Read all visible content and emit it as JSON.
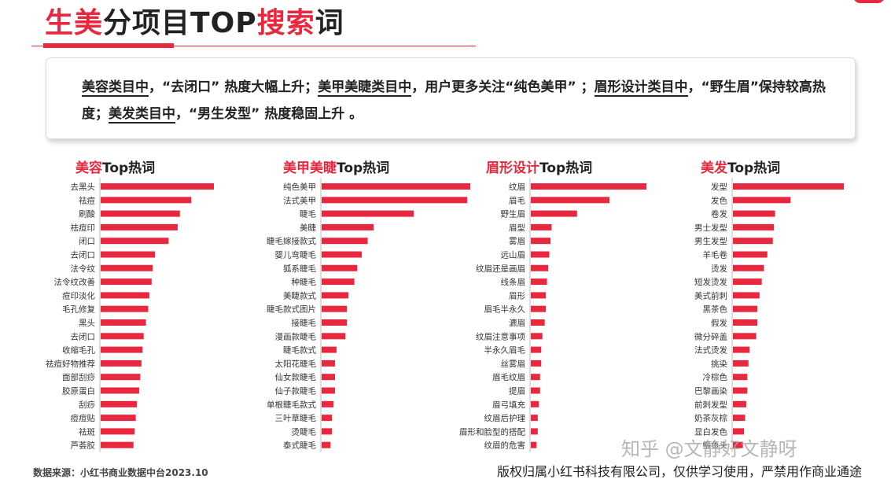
{
  "header": {
    "title_part1": "生美",
    "title_part2": "分项目",
    "title_part3": "TOP",
    "title_part4": "搜索",
    "title_part5": "词"
  },
  "summary": {
    "s1_cat": "美容类目中",
    "s1_text": "，“去闭口” 热度大幅上升；",
    "s2_cat": "美甲美睫类目中",
    "s2_text": "，用户更多关注“纯色美甲” ；",
    "s3_cat": "眉形设计类目中",
    "s3_text": "，“野生眉”保持较高热度；",
    "s4_cat": "美发类目中",
    "s4_text": "，“男生发型” 热度稳固上升 。"
  },
  "footer": {
    "source": "数据来源：小红书商业数据中台2023.10",
    "copyright": "版权归属小红书科技有限公司，仅供学习使用，严禁用作商业通途"
  },
  "watermark": {
    "text": "知乎 @文静好文静呀"
  },
  "colors": {
    "accent": "#e8283f"
  },
  "chart_data": [
    {
      "type": "bar",
      "orientation": "horizontal",
      "title_red": "美容",
      "title_black": "Top热词",
      "categories": [
        "去黑头",
        "祛痘",
        "刷酸",
        "祛痘印",
        "闭口",
        "去闭口",
        "法令纹",
        "法令纹改善",
        "痘印淡化",
        "毛孔修复",
        "黑头",
        "去闭口",
        "收缩毛孔",
        "祛痘好物推荐",
        "面部刮痧",
        "胶原蛋白",
        "刮痧",
        "痘痘贴",
        "祛斑",
        "芦荟胶"
      ],
      "values": [
        100,
        80,
        70,
        68,
        60,
        48,
        46,
        45,
        43,
        42,
        40,
        38,
        37,
        36,
        35,
        34,
        32,
        31,
        30,
        29
      ],
      "xlim": [
        0,
        100
      ]
    },
    {
      "type": "bar",
      "orientation": "horizontal",
      "title_red": "美甲美睫",
      "title_black": "Top热词",
      "categories": [
        "纯色美甲",
        "法式美甲",
        "睫毛",
        "美睫",
        "睫毛嫁接款式",
        "婴儿弯睫毛",
        "狐系睫毛",
        "种睫毛",
        "美睫款式",
        "睫毛款式图片",
        "接睫毛",
        "漫画款睫毛",
        "睫毛款式",
        "太阳花睫毛",
        "仙女款睫毛",
        "仙子款睫毛",
        "单根睫毛款式",
        "三叶草睫毛",
        "烫睫毛",
        "泰式睫毛"
      ],
      "values": [
        100,
        98,
        62,
        35,
        31,
        27,
        24,
        22,
        18,
        17,
        17,
        16,
        10,
        9,
        9,
        9,
        8,
        7,
        7,
        6
      ],
      "xlim": [
        0,
        100
      ]
    },
    {
      "type": "bar",
      "orientation": "horizontal",
      "title_red": "眉形设计",
      "title_black": "Top热词",
      "categories": [
        "纹眉",
        "眉毛",
        "野生眉",
        "眉型",
        "雾眉",
        "远山眉",
        "纹眉还是画眉",
        "线条眉",
        "眉形",
        "眉毛半永久",
        "瀌眉",
        "纹眉注意事项",
        "半永久眉毛",
        "丝雾眉",
        "眉毛纹眉",
        "提眉",
        "眉弓填充",
        "纹眉后护理",
        "眉形和脸型的搭配",
        "纹眉的危害"
      ],
      "values": [
        100,
        68,
        40,
        18,
        17,
        16,
        15,
        14,
        13,
        13,
        12,
        10,
        9,
        9,
        8,
        8,
        7,
        6,
        6,
        5
      ],
      "xlim": [
        0,
        100
      ]
    },
    {
      "type": "bar",
      "orientation": "horizontal",
      "title_red": "美发",
      "title_black": "Top热词",
      "categories": [
        "发型",
        "发色",
        "卷发",
        "男士发型",
        "男生发型",
        "羊毛卷",
        "烫发",
        "短发烫发",
        "美式前刺",
        "黑茶色",
        "假发",
        "微分碎盖",
        "法式烫发",
        "挑染",
        "冷棕色",
        "巴黎画染",
        "前刺发型",
        "奶茶灰棕",
        "显白发色",
        "鲻鱼头"
      ],
      "values": [
        100,
        52,
        38,
        37,
        36,
        31,
        28,
        26,
        24,
        22,
        22,
        21,
        15,
        14,
        13,
        13,
        12,
        11,
        10,
        9
      ],
      "xlim": [
        0,
        100
      ]
    }
  ]
}
